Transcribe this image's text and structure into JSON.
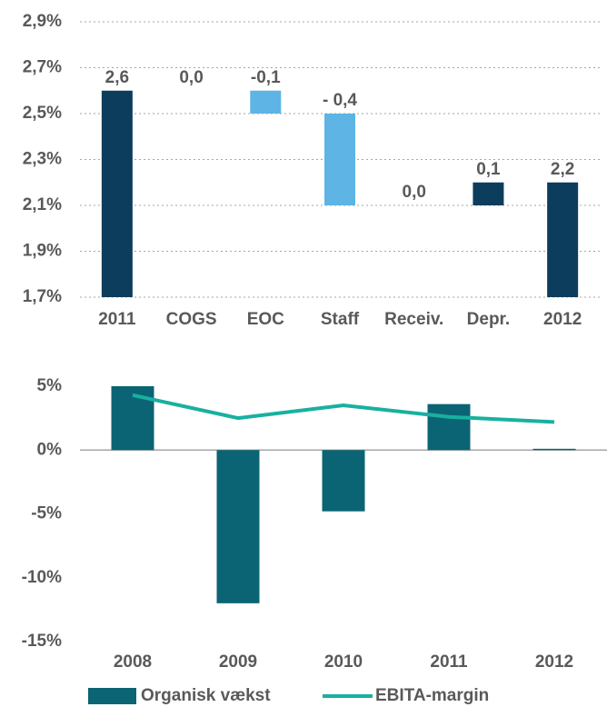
{
  "chart_data": [
    {
      "type": "waterfall",
      "categories": [
        "2011",
        "COGS",
        "EOC",
        "Staff",
        "Receiv.",
        "Depr.",
        "2012"
      ],
      "values": [
        2.6,
        0.0,
        -0.1,
        -0.4,
        0.0,
        0.1,
        2.2
      ],
      "value_labels": [
        "2,6",
        "0,0",
        "-0,1",
        "- 0,4",
        "0,0",
        "0,1",
        "2,2"
      ],
      "colors": {
        "total": "#0d3d5c",
        "increase": "#0d3d5c",
        "decrease": "#5db4e5"
      },
      "ylim": [
        1.7,
        2.9
      ],
      "yticks": [
        {
          "value": 1.7,
          "label": "1,7%"
        },
        {
          "value": 1.9,
          "label": "1,9%"
        },
        {
          "value": 2.1,
          "label": "2,1%"
        },
        {
          "value": 2.3,
          "label": "2,3%"
        },
        {
          "value": 2.5,
          "label": "2,5%"
        },
        {
          "value": 2.7,
          "label": "2,7%"
        },
        {
          "value": 2.9,
          "label": "2,9%"
        }
      ],
      "grid": true
    },
    {
      "type": "bar-line",
      "categories": [
        "2008",
        "2009",
        "2010",
        "2011",
        "2012"
      ],
      "series": [
        {
          "name": "Organisk vækst",
          "type": "bar",
          "color": "#0b6474",
          "values": [
            5.0,
            -12.0,
            -4.8,
            3.6,
            0.1
          ]
        },
        {
          "name": "EBITA-margin",
          "type": "line",
          "color": "#19b0a0",
          "values": [
            4.3,
            2.5,
            3.5,
            2.6,
            2.2
          ]
        }
      ],
      "ylim": [
        -15,
        5
      ],
      "yticks": [
        {
          "value": -15,
          "label": "-15%"
        },
        {
          "value": -10,
          "label": "-10%"
        },
        {
          "value": -5,
          "label": "-5%"
        },
        {
          "value": 0,
          "label": "0%"
        },
        {
          "value": 5,
          "label": "5%"
        }
      ],
      "legend": "bottom"
    }
  ]
}
